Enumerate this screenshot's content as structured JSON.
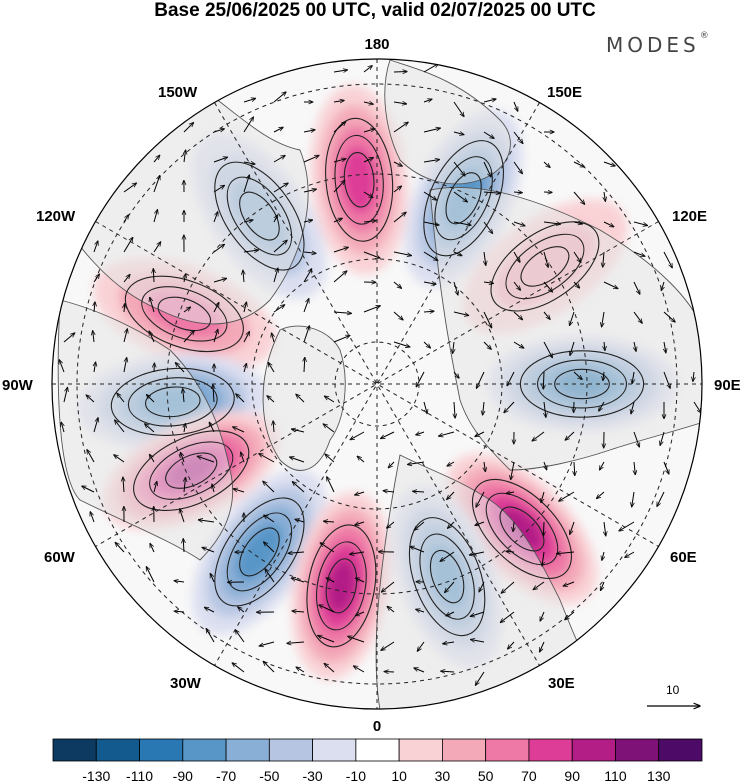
{
  "title": "Base 25/06/2025 00 UTC, valid 02/07/2025 00 UTC",
  "brand": "MODES",
  "brand_mark": "®",
  "map": {
    "projection": "north polar stereographic",
    "longitude_labels": {
      "top": "180",
      "bottom": "0",
      "left": "90W",
      "right": "90E",
      "upper_left_1": "150W",
      "upper_left_2": "120W",
      "upper_right_1": "150E",
      "upper_right_2": "120E",
      "lower_left_1": "60W",
      "lower_left_2": "30W",
      "lower_right_1": "60E",
      "lower_right_2": "30E"
    },
    "reference_vector_label": "10",
    "anomaly_centers": [
      {
        "sign": "positive",
        "strength": 95,
        "lon": "45E"
      },
      {
        "sign": "negative",
        "strength": -90,
        "lon": "90E"
      },
      {
        "sign": "positive",
        "strength": 40,
        "lon": "125E"
      },
      {
        "sign": "negative",
        "strength": -70,
        "lon": "155E"
      },
      {
        "sign": "positive",
        "strength": 75,
        "lon": "175W"
      },
      {
        "sign": "negative",
        "strength": -60,
        "lon": "145W"
      },
      {
        "sign": "positive",
        "strength": 50,
        "lon": "110W"
      },
      {
        "sign": "negative",
        "strength": -85,
        "lon": "85W"
      },
      {
        "sign": "positive",
        "strength": 100,
        "lon": "65W"
      },
      {
        "sign": "negative",
        "strength": -75,
        "lon": "35W"
      },
      {
        "sign": "positive",
        "strength": 90,
        "lon": "10W"
      },
      {
        "sign": "negative",
        "strength": -70,
        "lon": "20E"
      }
    ]
  },
  "colorbar": {
    "labels": [
      "-130",
      "-110",
      "-90",
      "-70",
      "-50",
      "-30",
      "-10",
      "10",
      "30",
      "50",
      "70",
      "90",
      "110",
      "130"
    ],
    "colors": [
      "#0d3a60",
      "#135a8e",
      "#2a78b3",
      "#5896c8",
      "#8aafd6",
      "#b6c6e2",
      "#dcdff0",
      "#ffffff",
      "#f9d2d6",
      "#f3a9b8",
      "#ee78a6",
      "#de3d97",
      "#b21e86",
      "#7e1277",
      "#4d0b67"
    ]
  }
}
